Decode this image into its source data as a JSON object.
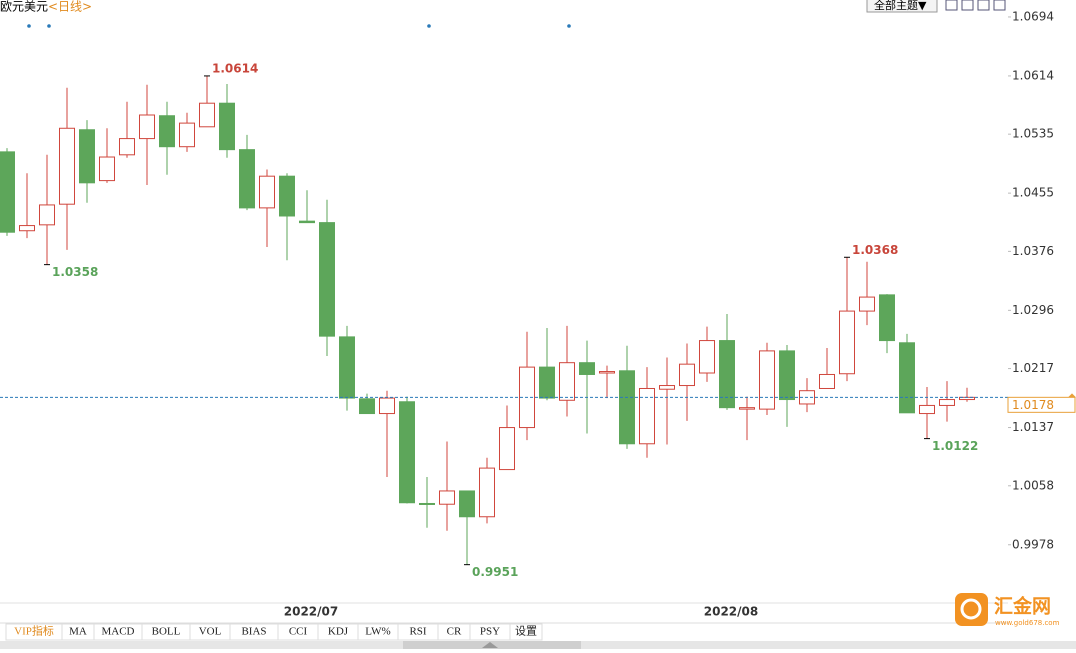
{
  "chart_data": {
    "type": "candlestick",
    "title": "欧元美元",
    "subtitle": "<日线>",
    "categories": [
      null,
      null,
      null,
      null,
      null,
      null,
      null,
      null,
      null,
      null,
      null,
      null,
      null,
      null,
      null,
      "2022/07",
      null,
      null,
      null,
      null,
      null,
      null,
      null,
      null,
      null,
      null,
      null,
      null,
      null,
      null,
      null,
      null,
      null,
      null,
      null,
      null,
      "2022/08",
      null,
      null,
      null,
      null,
      null,
      null,
      null,
      null,
      null,
      null,
      null,
      null
    ],
    "open": [
      1.0511,
      1.0404,
      1.0412,
      1.044,
      1.0541,
      1.0472,
      1.0507,
      1.0529,
      1.056,
      1.0518,
      1.0545,
      1.0577,
      1.0514,
      1.0435,
      1.0478,
      1.0417,
      1.0415,
      1.026,
      1.0176,
      1.0156,
      1.0172,
      1.0034,
      1.0033,
      1.0051,
      1.0016,
      1.008,
      1.0137,
      1.0219,
      1.0174,
      1.0225,
      1.0211,
      1.0214,
      1.0115,
      1.0189,
      1.0194,
      1.0211,
      1.0255,
      1.0162,
      1.0162,
      1.0241,
      1.0169,
      1.019,
      1.021,
      1.0295,
      1.0317,
      1.0252,
      1.0156,
      1.0167,
      1.0175
    ],
    "high": [
      1.0516,
      1.0482,
      1.0507,
      1.0598,
      1.0554,
      1.0543,
      1.0579,
      1.0602,
      1.0579,
      1.0564,
      1.0614,
      1.0603,
      1.0534,
      1.0487,
      1.0482,
      1.0459,
      1.0446,
      1.0275,
      1.0183,
      1.0187,
      1.0179,
      1.007,
      1.0118,
      1.0051,
      1.0096,
      1.0167,
      1.0267,
      1.0272,
      1.0275,
      1.0255,
      1.0221,
      1.0248,
      1.0219,
      1.0232,
      1.0251,
      1.0274,
      1.0291,
      1.0179,
      1.0252,
      1.0249,
      1.0204,
      1.0245,
      1.0368,
      1.0362,
      1.0318,
      1.0264,
      1.0192,
      1.02,
      1.0191
    ],
    "low": [
      1.0397,
      1.0394,
      1.0358,
      1.0378,
      1.0442,
      1.0469,
      1.0503,
      1.0466,
      1.048,
      1.0511,
      1.0545,
      1.0503,
      1.0432,
      1.0382,
      1.0364,
      1.0415,
      1.0234,
      1.016,
      1.0156,
      1.007,
      1.0034,
      1.0001,
      0.9997,
      0.9951,
      1.0007,
      1.008,
      1.012,
      1.0174,
      1.0152,
      1.0129,
      1.0177,
      1.0108,
      1.0096,
      1.0114,
      1.0146,
      1.0199,
      1.0161,
      1.012,
      1.0154,
      1.0138,
      1.0158,
      1.019,
      1.02,
      1.0276,
      1.0238,
      1.0157,
      1.0122,
      1.0145,
      1.0172
    ],
    "close": [
      1.0402,
      1.0411,
      1.0439,
      1.0543,
      1.0469,
      1.0504,
      1.0529,
      1.0561,
      1.0518,
      1.055,
      1.0577,
      1.0514,
      1.0435,
      1.0478,
      1.0424,
      1.0415,
      1.0261,
      1.0177,
      1.0156,
      1.0177,
      1.0035,
      1.0033,
      1.0051,
      1.0016,
      1.0082,
      1.0137,
      1.0219,
      1.0177,
      1.0225,
      1.0209,
      1.0213,
      1.0115,
      1.019,
      1.0194,
      1.0223,
      1.0255,
      1.0164,
      1.0164,
      1.0241,
      1.0175,
      1.0187,
      1.0209,
      1.0295,
      1.0314,
      1.0255,
      1.0157,
      1.0167,
      1.0175,
      1.0178
    ],
    "up_color": "#d0463c",
    "down_color": "#5da65a",
    "ylim": [
      0.9899,
      1.0717
    ],
    "yticks": [
      1.0694,
      1.0614,
      1.0535,
      1.0455,
      1.0376,
      1.0296,
      1.0217,
      1.0137,
      1.0058,
      0.9978
    ]
  },
  "toolbar": {
    "theme": "全部主题▼"
  },
  "indicator_tabs": [
    "VIP指标",
    "MA",
    "MACD",
    "BOLL",
    "VOL",
    "BIAS",
    "CCI",
    "KDJ",
    "LW%",
    "RSI",
    "CR",
    "PSY",
    "设置"
  ],
  "logo": {
    "name": "汇金网",
    "url": "www.gold678.com"
  }
}
